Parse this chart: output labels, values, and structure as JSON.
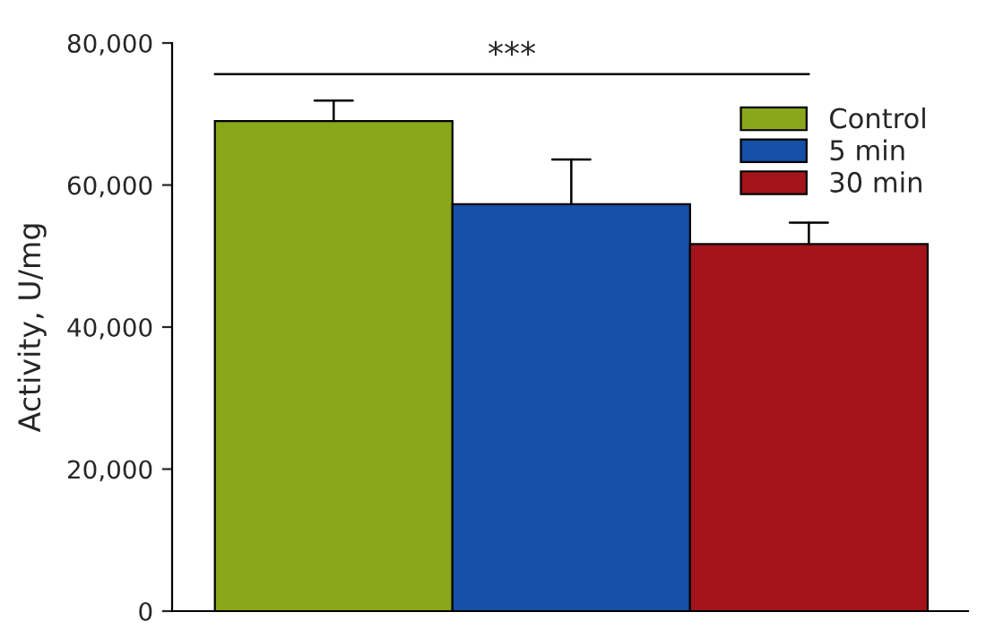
{
  "chart_data": {
    "type": "bar",
    "ylabel": "Activity, U/mg",
    "categories": [
      null,
      null,
      null
    ],
    "series": [
      {
        "name": "Control",
        "color": "#8aa61a",
        "values": [
          69000,
          null,
          null
        ],
        "errors": [
          [
            69000,
            71900
          ],
          null,
          null
        ]
      },
      {
        "name": "5 min",
        "color": "#164fa6",
        "values": [
          null,
          57300,
          null
        ],
        "errors": [
          null,
          [
            57300,
            63600
          ],
          null
        ]
      },
      {
        "name": "30 min",
        "color": "#a3141b",
        "values": [
          null,
          null,
          51700
        ],
        "errors": [
          null,
          null,
          [
            51700,
            54700
          ]
        ]
      }
    ],
    "ylim": [
      0,
      80000
    ],
    "yticks": [
      {
        "value": 0,
        "label": "0"
      },
      {
        "value": 20000,
        "label": "20,000"
      },
      {
        "value": 40000,
        "label": "40,000"
      },
      {
        "value": 60000,
        "label": "60,000"
      },
      {
        "value": 80000,
        "label": "80,000"
      }
    ],
    "ref_lines": [
      {
        "axis": "y",
        "value": 75600,
        "label": "***",
        "color": "#000000"
      }
    ],
    "legend": "top right",
    "grid": false
  }
}
